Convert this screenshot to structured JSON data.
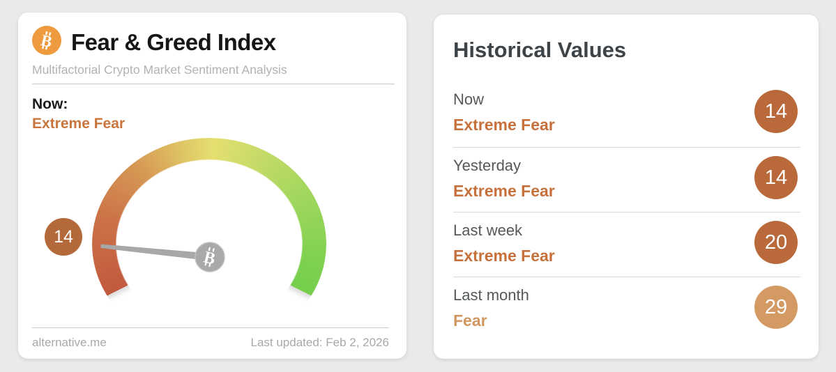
{
  "colors": {
    "page_bg": "#e9eaea",
    "accent_orange": "#c8763d",
    "accent_orange_light": "#d1975f",
    "circle_dark": "#b9693a",
    "circle_light": "#d49a63",
    "bitcoin_icon_orange": "#ee9a3f",
    "needle_gray": "#a8a8a8",
    "gauge_gradient": [
      "#c2593f",
      "#d79a55",
      "#e4df6f",
      "#9cd65c",
      "#75ce4c"
    ]
  },
  "left_card": {
    "title": "Fear & Greed Index",
    "subtitle": "Multifactorial Crypto Market Sentiment Analysis",
    "now_label": "Now:",
    "now_value": "Extreme Fear",
    "badge_value": "14",
    "footer_left": "alternative.me",
    "footer_right": "Last updated: Feb 2, 2026"
  },
  "right_card": {
    "heading": "Historical Values",
    "rows": [
      {
        "label": "Now",
        "value": "Extreme Fear",
        "score": "14"
      },
      {
        "label": "Yesterday",
        "value": "Extreme Fear",
        "score": "14"
      },
      {
        "label": "Last week",
        "value": "Extreme Fear",
        "score": "20"
      },
      {
        "label": "Last month",
        "value": "Fear",
        "score": "29"
      }
    ]
  },
  "chart_data": {
    "type": "gauge",
    "title": "Fear & Greed Index",
    "value": 14,
    "value_label": "Extreme Fear",
    "range": [
      0,
      100
    ],
    "arc_span_degrees": 234,
    "color_scale": "red (extreme fear, 0) through yellow to green (extreme greed, 100)",
    "historical": [
      {
        "label": "Now",
        "classification": "Extreme Fear",
        "value": 14
      },
      {
        "label": "Yesterday",
        "classification": "Extreme Fear",
        "value": 14
      },
      {
        "label": "Last week",
        "classification": "Extreme Fear",
        "value": 20
      },
      {
        "label": "Last month",
        "classification": "Fear",
        "value": 29
      }
    ]
  }
}
